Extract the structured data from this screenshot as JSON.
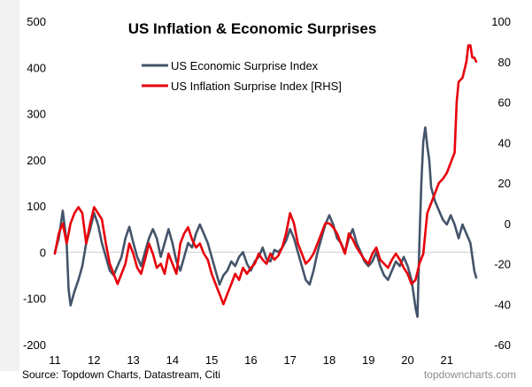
{
  "chart_data": {
    "type": "line",
    "title": "US Inflation & Economic Surprises",
    "x_ticks": [
      "11",
      "12",
      "13",
      "14",
      "15",
      "16",
      "17",
      "18",
      "19",
      "20",
      "21"
    ],
    "xlim": [
      2011,
      2021.75
    ],
    "y_left": {
      "ticks": [
        "500",
        "400",
        "300",
        "200",
        "100",
        "0",
        "-100",
        "-200"
      ],
      "ylim": [
        -200,
        500
      ]
    },
    "y_right": {
      "ticks": [
        "100",
        "80",
        "60",
        "40",
        "20",
        "0",
        "-20",
        "-40",
        "-60"
      ],
      "ylim": [
        -60,
        100
      ]
    },
    "grid": false,
    "zero_line": true,
    "legend_position": "top-center",
    "series": [
      {
        "name": "US Economic Surprise Index",
        "axis": "left",
        "color": "#44546a",
        "points": [
          [
            2011.0,
            0
          ],
          [
            2011.1,
            30
          ],
          [
            2011.2,
            90
          ],
          [
            2011.3,
            20
          ],
          [
            2011.35,
            -80
          ],
          [
            2011.4,
            -115
          ],
          [
            2011.5,
            -85
          ],
          [
            2011.6,
            -60
          ],
          [
            2011.7,
            -30
          ],
          [
            2011.8,
            20
          ],
          [
            2011.9,
            50
          ],
          [
            2012.0,
            85
          ],
          [
            2012.1,
            60
          ],
          [
            2012.2,
            20
          ],
          [
            2012.3,
            -10
          ],
          [
            2012.4,
            -40
          ],
          [
            2012.5,
            -50
          ],
          [
            2012.6,
            -30
          ],
          [
            2012.7,
            -10
          ],
          [
            2012.8,
            30
          ],
          [
            2012.9,
            55
          ],
          [
            2013.0,
            20
          ],
          [
            2013.1,
            -10
          ],
          [
            2013.2,
            -30
          ],
          [
            2013.3,
            0
          ],
          [
            2013.4,
            30
          ],
          [
            2013.5,
            50
          ],
          [
            2013.6,
            30
          ],
          [
            2013.7,
            -10
          ],
          [
            2013.8,
            20
          ],
          [
            2013.9,
            50
          ],
          [
            2014.0,
            20
          ],
          [
            2014.1,
            -20
          ],
          [
            2014.2,
            -40
          ],
          [
            2014.3,
            -10
          ],
          [
            2014.4,
            20
          ],
          [
            2014.5,
            10
          ],
          [
            2014.6,
            40
          ],
          [
            2014.7,
            60
          ],
          [
            2014.8,
            40
          ],
          [
            2014.9,
            20
          ],
          [
            2015.0,
            -10
          ],
          [
            2015.1,
            -40
          ],
          [
            2015.2,
            -70
          ],
          [
            2015.3,
            -50
          ],
          [
            2015.4,
            -40
          ],
          [
            2015.5,
            -20
          ],
          [
            2015.6,
            -30
          ],
          [
            2015.7,
            -10
          ],
          [
            2015.8,
            0
          ],
          [
            2015.9,
            -25
          ],
          [
            2016.0,
            -40
          ],
          [
            2016.1,
            -20
          ],
          [
            2016.2,
            -10
          ],
          [
            2016.3,
            10
          ],
          [
            2016.4,
            -15
          ],
          [
            2016.5,
            -20
          ],
          [
            2016.6,
            5
          ],
          [
            2016.7,
            0
          ],
          [
            2016.8,
            10
          ],
          [
            2016.9,
            25
          ],
          [
            2017.0,
            50
          ],
          [
            2017.1,
            30
          ],
          [
            2017.2,
            0
          ],
          [
            2017.3,
            -30
          ],
          [
            2017.4,
            -60
          ],
          [
            2017.5,
            -70
          ],
          [
            2017.6,
            -40
          ],
          [
            2017.7,
            0
          ],
          [
            2017.8,
            30
          ],
          [
            2017.9,
            60
          ],
          [
            2018.0,
            80
          ],
          [
            2018.1,
            60
          ],
          [
            2018.2,
            30
          ],
          [
            2018.3,
            20
          ],
          [
            2018.4,
            0
          ],
          [
            2018.5,
            30
          ],
          [
            2018.6,
            50
          ],
          [
            2018.7,
            20
          ],
          [
            2018.8,
            0
          ],
          [
            2018.9,
            -20
          ],
          [
            2019.0,
            -30
          ],
          [
            2019.1,
            -20
          ],
          [
            2019.2,
            0
          ],
          [
            2019.3,
            -30
          ],
          [
            2019.4,
            -50
          ],
          [
            2019.5,
            -60
          ],
          [
            2019.6,
            -40
          ],
          [
            2019.7,
            -20
          ],
          [
            2019.8,
            -30
          ],
          [
            2019.9,
            -10
          ],
          [
            2020.0,
            -30
          ],
          [
            2020.1,
            -60
          ],
          [
            2020.15,
            -90
          ],
          [
            2020.2,
            -120
          ],
          [
            2020.25,
            -140
          ],
          [
            2020.3,
            20
          ],
          [
            2020.35,
            150
          ],
          [
            2020.4,
            240
          ],
          [
            2020.45,
            270
          ],
          [
            2020.5,
            230
          ],
          [
            2020.55,
            200
          ],
          [
            2020.6,
            140
          ],
          [
            2020.7,
            110
          ],
          [
            2020.8,
            90
          ],
          [
            2020.9,
            70
          ],
          [
            2021.0,
            60
          ],
          [
            2021.1,
            80
          ],
          [
            2021.2,
            60
          ],
          [
            2021.3,
            30
          ],
          [
            2021.4,
            60
          ],
          [
            2021.5,
            40
          ],
          [
            2021.6,
            20
          ],
          [
            2021.65,
            -10
          ],
          [
            2021.7,
            -40
          ],
          [
            2021.75,
            -55
          ]
        ]
      },
      {
        "name": "US Inflation Surprise Index [RHS]",
        "axis": "right",
        "color": "#e8000b",
        "points": [
          [
            2011.0,
            -15
          ],
          [
            2011.1,
            -5
          ],
          [
            2011.2,
            0
          ],
          [
            2011.3,
            -10
          ],
          [
            2011.4,
            0
          ],
          [
            2011.5,
            5
          ],
          [
            2011.6,
            8
          ],
          [
            2011.7,
            5
          ],
          [
            2011.8,
            -10
          ],
          [
            2011.9,
            0
          ],
          [
            2012.0,
            8
          ],
          [
            2012.1,
            5
          ],
          [
            2012.2,
            2
          ],
          [
            2012.3,
            -10
          ],
          [
            2012.4,
            -20
          ],
          [
            2012.5,
            -25
          ],
          [
            2012.6,
            -30
          ],
          [
            2012.7,
            -25
          ],
          [
            2012.8,
            -20
          ],
          [
            2012.9,
            -10
          ],
          [
            2013.0,
            -15
          ],
          [
            2013.1,
            -22
          ],
          [
            2013.2,
            -25
          ],
          [
            2013.3,
            -18
          ],
          [
            2013.4,
            -10
          ],
          [
            2013.5,
            -15
          ],
          [
            2013.6,
            -22
          ],
          [
            2013.7,
            -20
          ],
          [
            2013.8,
            -25
          ],
          [
            2013.9,
            -15
          ],
          [
            2014.0,
            -20
          ],
          [
            2014.1,
            -25
          ],
          [
            2014.2,
            -10
          ],
          [
            2014.3,
            -5
          ],
          [
            2014.4,
            -2
          ],
          [
            2014.5,
            -8
          ],
          [
            2014.6,
            -12
          ],
          [
            2014.7,
            -10
          ],
          [
            2014.8,
            -15
          ],
          [
            2014.9,
            -18
          ],
          [
            2015.0,
            -25
          ],
          [
            2015.1,
            -30
          ],
          [
            2015.2,
            -35
          ],
          [
            2015.3,
            -40
          ],
          [
            2015.4,
            -35
          ],
          [
            2015.5,
            -30
          ],
          [
            2015.6,
            -25
          ],
          [
            2015.7,
            -28
          ],
          [
            2015.8,
            -22
          ],
          [
            2015.9,
            -25
          ],
          [
            2016.0,
            -22
          ],
          [
            2016.1,
            -20
          ],
          [
            2016.2,
            -15
          ],
          [
            2016.3,
            -18
          ],
          [
            2016.4,
            -20
          ],
          [
            2016.5,
            -15
          ],
          [
            2016.6,
            -18
          ],
          [
            2016.7,
            -16
          ],
          [
            2016.8,
            -12
          ],
          [
            2016.9,
            -5
          ],
          [
            2017.0,
            5
          ],
          [
            2017.1,
            0
          ],
          [
            2017.2,
            -10
          ],
          [
            2017.3,
            -15
          ],
          [
            2017.4,
            -20
          ],
          [
            2017.5,
            -18
          ],
          [
            2017.6,
            -15
          ],
          [
            2017.7,
            -10
          ],
          [
            2017.8,
            -5
          ],
          [
            2017.9,
            0
          ],
          [
            2018.0,
            0
          ],
          [
            2018.1,
            -2
          ],
          [
            2018.2,
            -5
          ],
          [
            2018.3,
            -10
          ],
          [
            2018.4,
            -15
          ],
          [
            2018.5,
            -5
          ],
          [
            2018.6,
            -8
          ],
          [
            2018.7,
            -12
          ],
          [
            2018.8,
            -15
          ],
          [
            2018.9,
            -18
          ],
          [
            2019.0,
            -20
          ],
          [
            2019.1,
            -15
          ],
          [
            2019.2,
            -12
          ],
          [
            2019.3,
            -18
          ],
          [
            2019.4,
            -20
          ],
          [
            2019.5,
            -22
          ],
          [
            2019.6,
            -18
          ],
          [
            2019.7,
            -15
          ],
          [
            2019.8,
            -18
          ],
          [
            2019.9,
            -22
          ],
          [
            2020.0,
            -25
          ],
          [
            2020.1,
            -30
          ],
          [
            2020.2,
            -28
          ],
          [
            2020.3,
            -20
          ],
          [
            2020.4,
            -15
          ],
          [
            2020.45,
            -5
          ],
          [
            2020.5,
            5
          ],
          [
            2020.6,
            10
          ],
          [
            2020.7,
            15
          ],
          [
            2020.8,
            20
          ],
          [
            2020.9,
            22
          ],
          [
            2021.0,
            25
          ],
          [
            2021.1,
            30
          ],
          [
            2021.2,
            35
          ],
          [
            2021.25,
            60
          ],
          [
            2021.3,
            70
          ],
          [
            2021.4,
            72
          ],
          [
            2021.5,
            80
          ],
          [
            2021.55,
            88
          ],
          [
            2021.6,
            88
          ],
          [
            2021.65,
            82
          ],
          [
            2021.7,
            82
          ],
          [
            2021.75,
            80
          ]
        ]
      }
    ]
  },
  "footer": {
    "source": "Source: Topdown Charts, Datastream, Citi",
    "brand": "topdowncharts.com"
  }
}
